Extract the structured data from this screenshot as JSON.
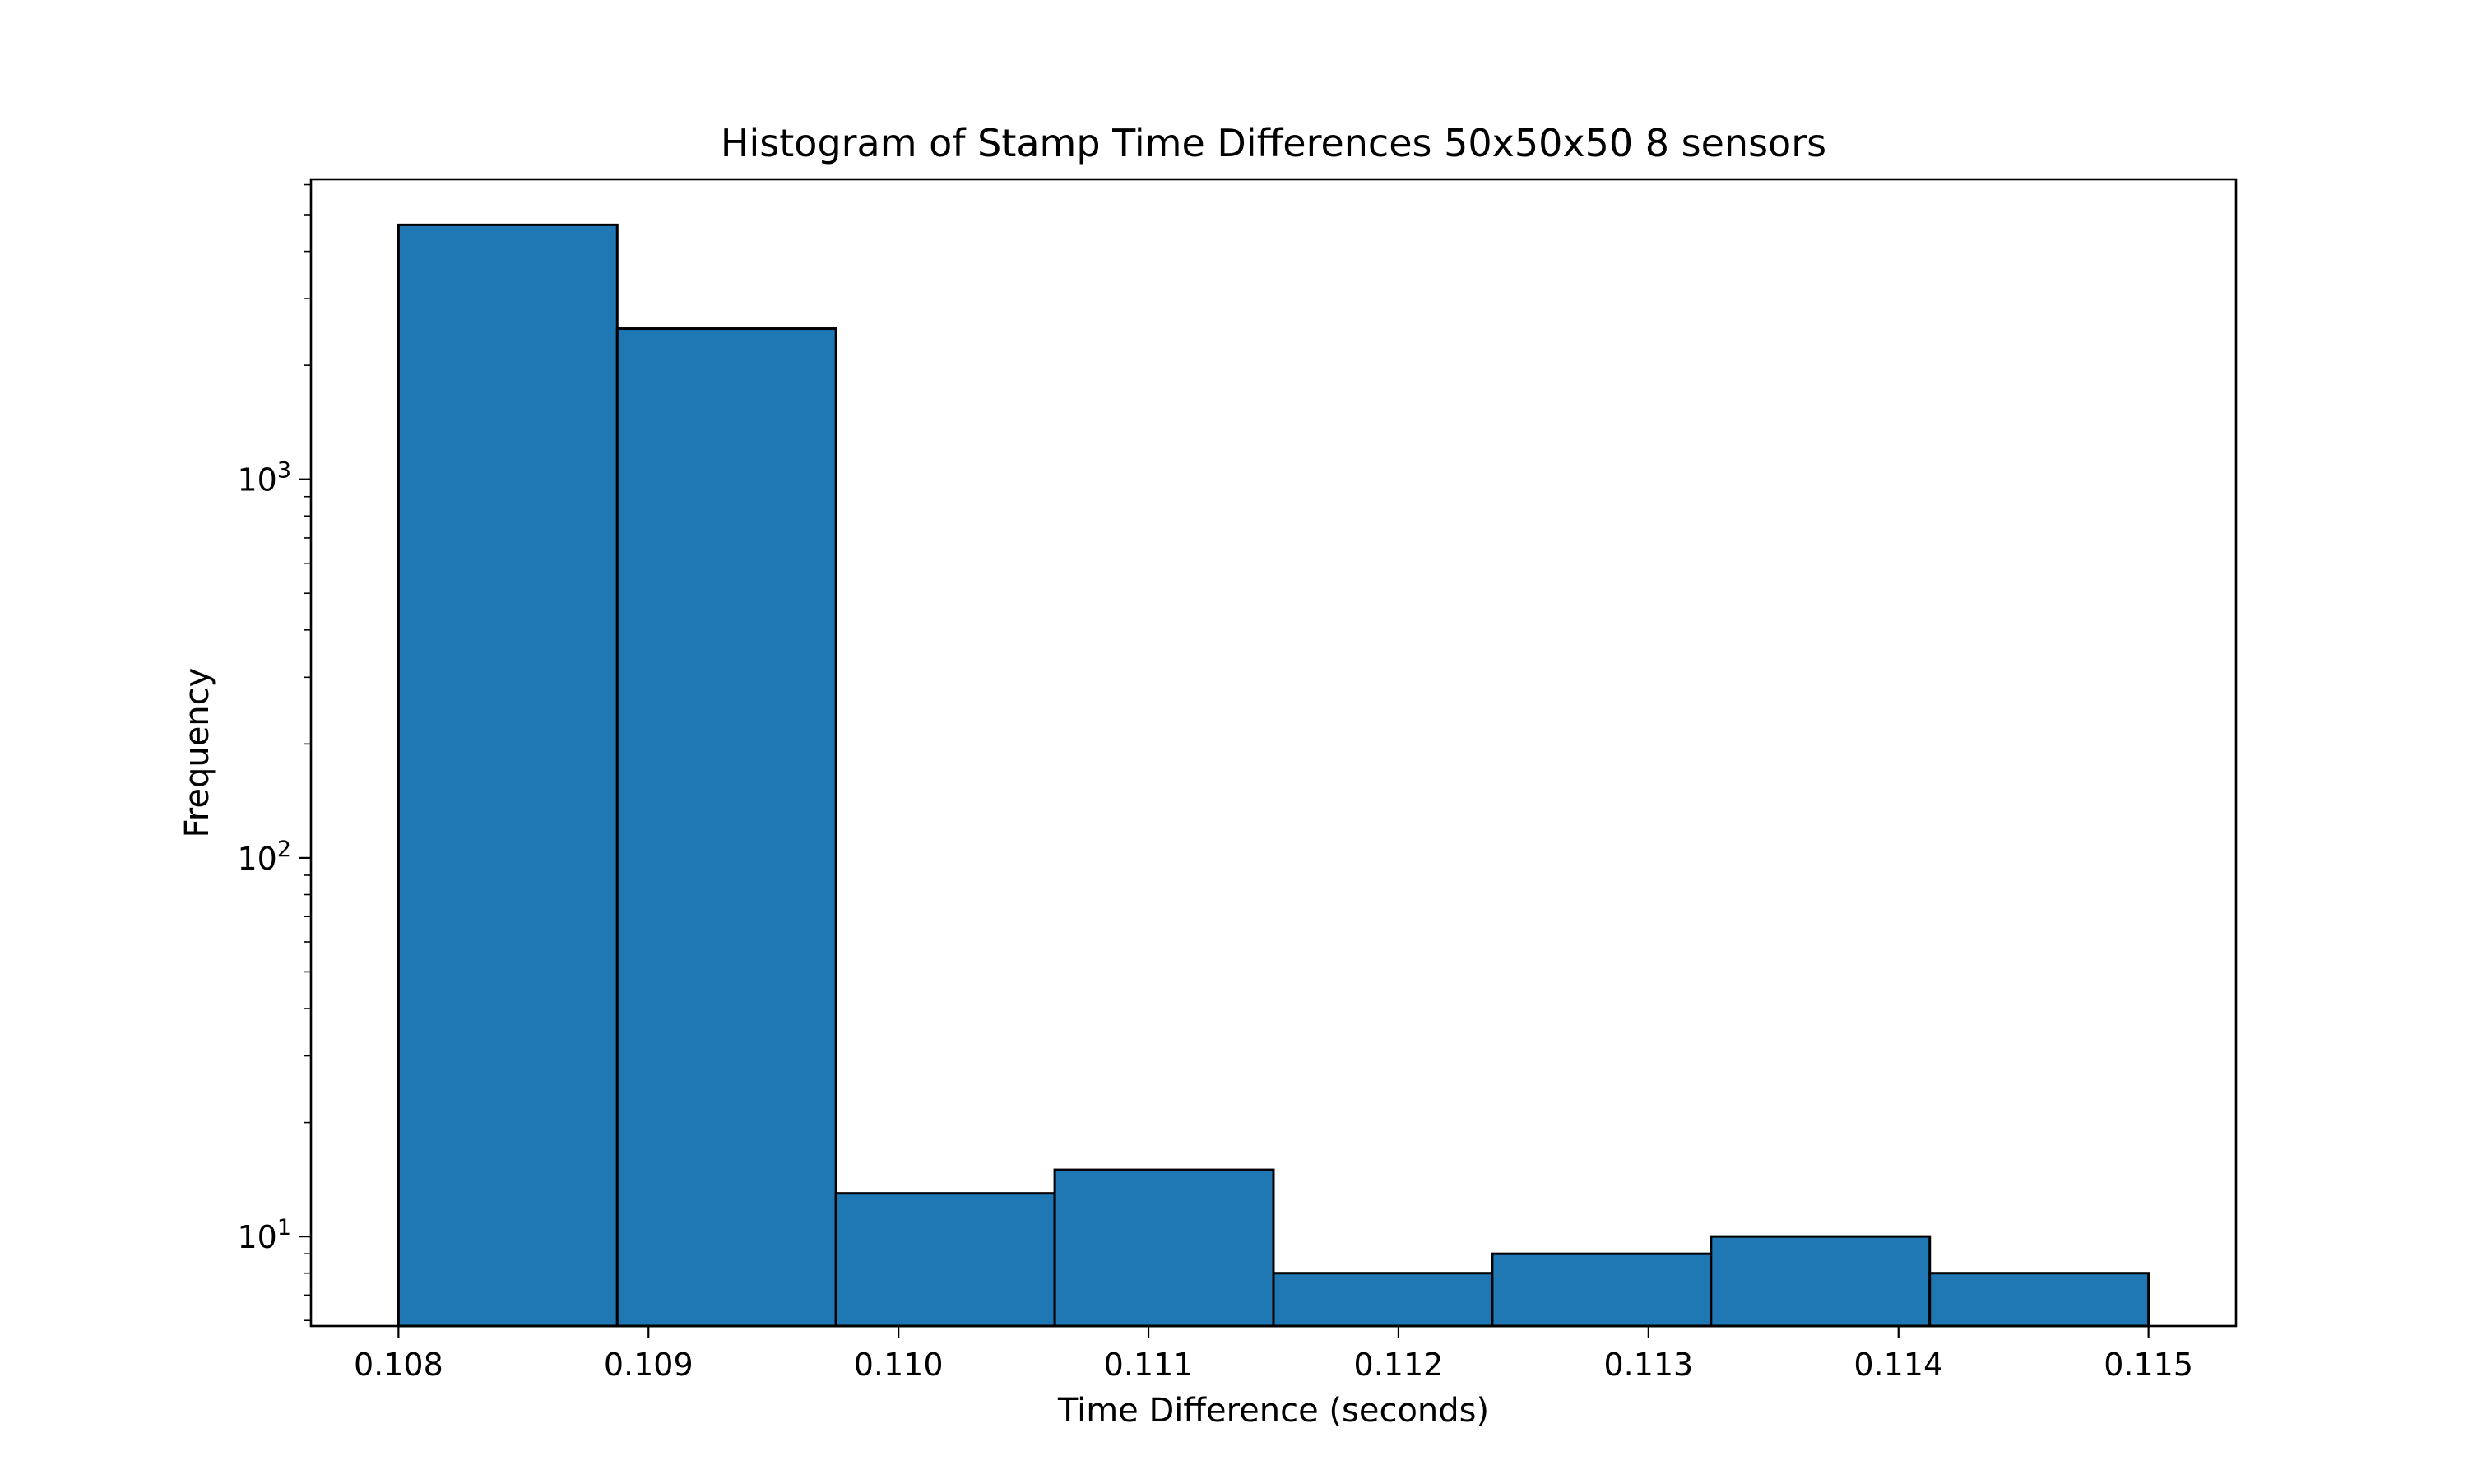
{
  "chart_data": {
    "type": "bar",
    "subtype": "histogram",
    "title": "Histogram of Stamp Time Differences 50x50x50 8 sensors",
    "xlabel": "Time Difference (seconds)",
    "ylabel": "Frequency",
    "yscale": "log",
    "xlim": [
      0.10765,
      0.11535
    ],
    "ylim": [
      5.8,
      6200
    ],
    "grid": false,
    "bar_color": "#1f77b4",
    "edge_color": "#000000",
    "bin_edges": [
      0.108,
      0.108875,
      0.10975,
      0.110625,
      0.1115,
      0.112375,
      0.11325,
      0.114125,
      0.115
    ],
    "values": [
      4700,
      2500,
      13,
      15,
      8,
      9,
      10,
      8
    ],
    "xticks": [
      {
        "value": 0.108,
        "label": "0.108"
      },
      {
        "value": 0.109,
        "label": "0.109"
      },
      {
        "value": 0.11,
        "label": "0.110"
      },
      {
        "value": 0.111,
        "label": "0.111"
      },
      {
        "value": 0.112,
        "label": "0.112"
      },
      {
        "value": 0.113,
        "label": "0.113"
      },
      {
        "value": 0.114,
        "label": "0.114"
      },
      {
        "value": 0.115,
        "label": "0.115"
      }
    ],
    "yticks": [
      {
        "value": 10,
        "base": "10",
        "exp": "1"
      },
      {
        "value": 100,
        "base": "10",
        "exp": "2"
      },
      {
        "value": 1000,
        "base": "10",
        "exp": "3"
      }
    ]
  }
}
